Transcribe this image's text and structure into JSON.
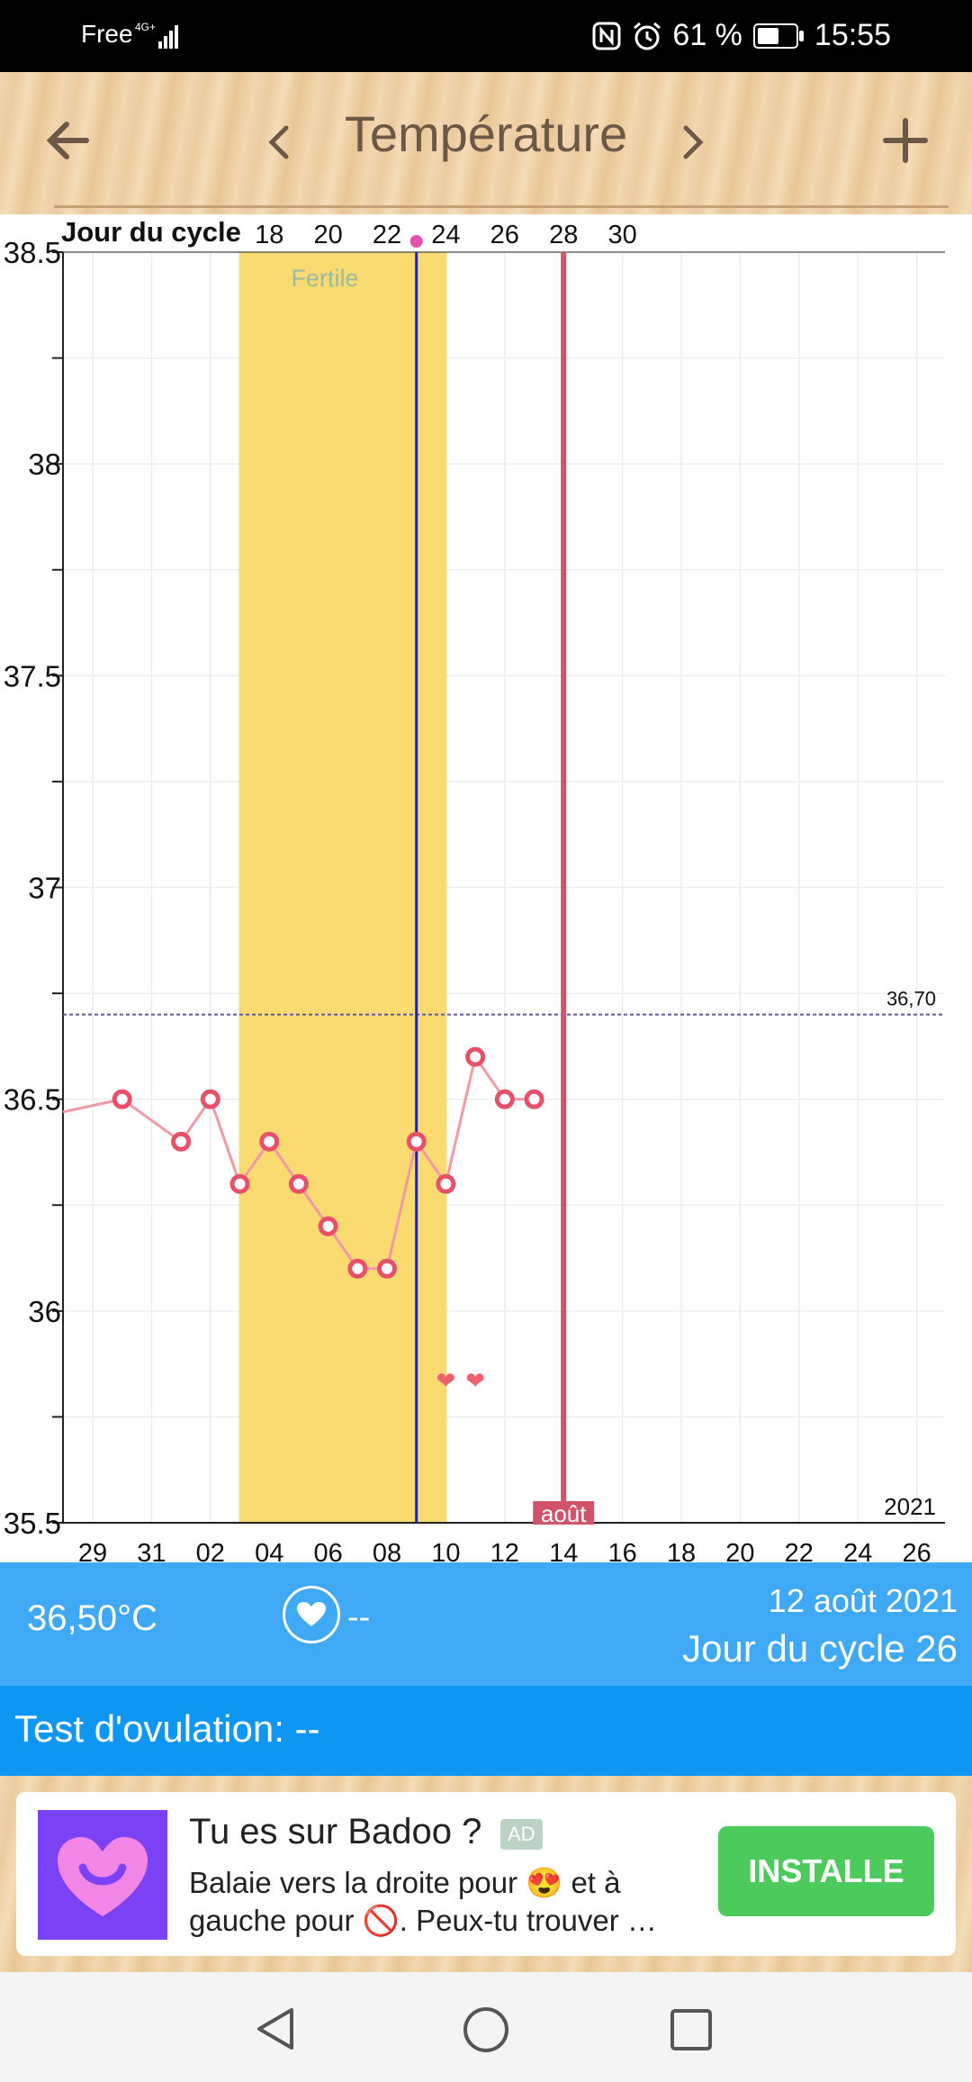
{
  "status_bar": {
    "carrier": "Free",
    "network": "4G+",
    "battery": "61 %",
    "battery_level": 0.61,
    "time": "15:55"
  },
  "header": {
    "title": "Température",
    "back_icon": "arrow-left-icon",
    "prev_icon": "chevron-left-icon",
    "next_icon": "chevron-right-icon",
    "add_icon": "plus-icon"
  },
  "chart_data": {
    "type": "line",
    "top_axis_label": "Jour du cycle",
    "top_ticks": [
      "18",
      "20",
      "22",
      "24",
      "26",
      "28",
      "30"
    ],
    "x_ticks": [
      "29",
      "31",
      "02",
      "04",
      "06",
      "08",
      "10",
      "12",
      "14",
      "16",
      "18",
      "20",
      "22",
      "24",
      "26"
    ],
    "y_ticks": [
      "38.5",
      "38",
      "37.5",
      "37",
      "36.5",
      "36",
      "35.5"
    ],
    "ylim": [
      35.5,
      38.5
    ],
    "series": [
      {
        "x": [
          1,
          3,
          4,
          5,
          6,
          7,
          8,
          9,
          10,
          11,
          12,
          13,
          14,
          15
        ],
        "values": [
          36.5,
          36.4,
          36.5,
          36.3,
          36.4,
          36.3,
          36.2,
          36.1,
          36.1,
          36.4,
          36.3,
          36.6,
          36.5,
          36.5
        ]
      }
    ],
    "fertile_label": "Fertile",
    "fertile_range": [
      5,
      12
    ],
    "ovulation_day": 11,
    "current_day": 16,
    "current_label": "36,50°C",
    "month_label": "août",
    "year_label": "2021",
    "reference_line": {
      "value": 36.7,
      "label": "36,70"
    },
    "intercourse_days": [
      12,
      13
    ],
    "colors": {
      "fertile": "#f9db71",
      "ovulation_line": "#1b1bd9",
      "current_line": "#d1536a",
      "series": "#f19aa6",
      "marker": "#e8506a"
    }
  },
  "info": {
    "temperature": "36,50°C",
    "heart_icon": "heart-icon",
    "heart_value": "--",
    "date": "12 août 2021",
    "cycle_day": "Jour du cycle 26"
  },
  "ovulation_test": {
    "label": "Test d'ovulation: --"
  },
  "ad": {
    "title": "Tu es sur Badoo ?",
    "badge": "AD",
    "description": "Balaie vers la droite pour 😍 et à gauche pour 🚫. Peux-tu trouver …",
    "button": "INSTALLE"
  },
  "nav": {
    "back_icon": "nav-back-icon",
    "home_icon": "nav-home-icon",
    "recents_icon": "nav-recents-icon"
  }
}
